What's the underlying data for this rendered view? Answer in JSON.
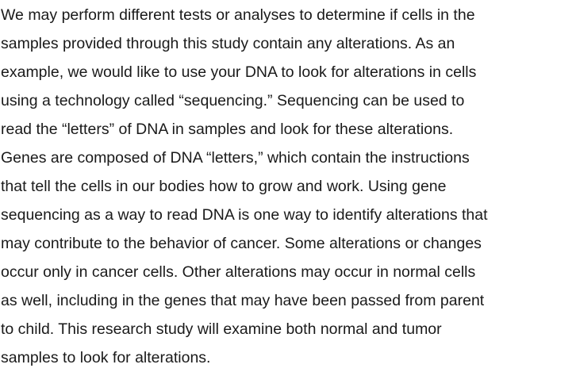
{
  "document": {
    "paragraph_lines": [
      "We may perform different tests or analyses to determine if cells in the",
      "samples provided through this study contain any alterations. As an",
      "example, we would like to use your DNA to look for alterations in cells",
      "using a technology called “sequencing.” Sequencing can be used to",
      "read the “letters” of DNA in samples and look for these alterations.",
      "Genes are composed of DNA “letters,” which contain the instructions",
      "that tell the cells in our bodies how to grow and work. Using gene",
      "sequencing as a way to read DNA is one way to identify alterations that",
      "may contribute to the behavior of cancer. Some alterations or changes",
      "occur only in cancer cells. Other alterations may occur in normal cells",
      "as well, including in the genes that may have been passed from parent",
      "to child. This research study will examine both normal and tumor",
      "samples to look for alterations."
    ],
    "text_color": "#1a1a1a",
    "background_color": "#ffffff"
  }
}
